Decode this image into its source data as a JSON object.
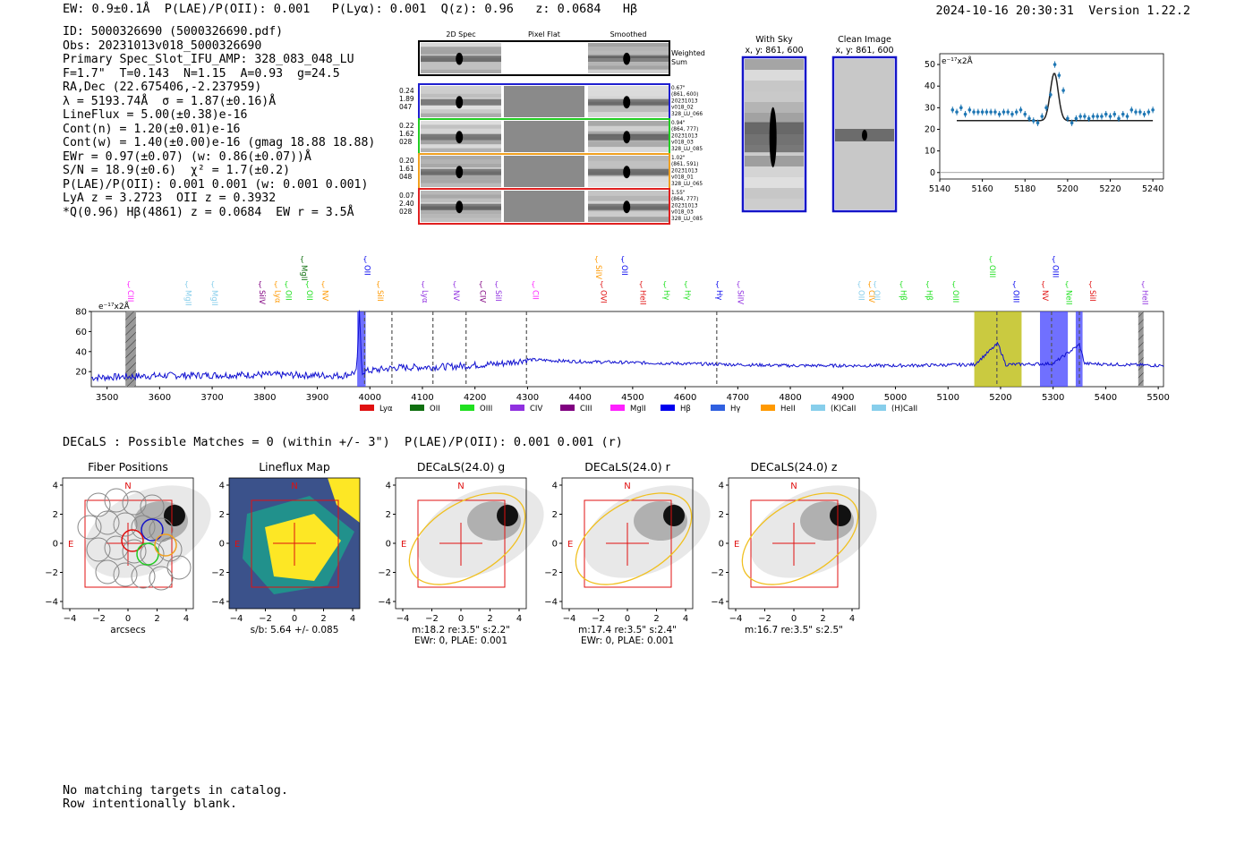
{
  "header": {
    "left": "EW: 0.9±0.1Å  P(LAE)/P(OII): 0.001   P(Lyα): 0.001  Q(z): 0.96   z: 0.0684   Hβ",
    "sup_plae": "0.001",
    "sub_plae": "0.001",
    "sup_qz": "0.96",
    "sub_qz": "0.96",
    "sup_z": "0.0684",
    "sub_z": "0.0684",
    "timestamp": "2024-10-16 20:30:31",
    "version": "Version 1.22.2"
  },
  "info": [
    "ID: 5000326690 (5000326690.pdf)",
    "Obs: 20231013v018_5000326690",
    "Primary Spec_Slot_IFU_AMP: 328_083_048_LU",
    "F=1.7\"  T=0.143  N=1.15  A=0.93  g=24.5",
    "RA,Dec (22.675406,-2.237959)",
    "λ = 5193.74Å  σ = 1.87(±0.16)Å",
    "LineFlux = 5.00(±0.38)e-16",
    "Cont(n) = 1.20(±0.01)e-16",
    "Cont(w) = 1.40(±0.00)e-16 (gmag 18.88 18.88)",
    "EWr = 0.97(±0.07) (w: 0.86(±0.07))Å",
    "S/N = 18.9(±0.6)  χ² = 1.7(±0.2)",
    "P(LAE)/P(OII): 0.001 0.001 (w: 0.001 0.001)",
    "LyA z = 3.2723  OII z = 0.3932",
    "*Q(0.96) Hβ(4861) z = 0.0684  EW r = 3.5Å"
  ],
  "cutouts": {
    "col_headers": [
      "2D Spec",
      "Pixel Flat",
      "Smoothed"
    ],
    "weighted_sum_label": "Weighted Sum",
    "rows": [
      {
        "left": [
          "0.24",
          "1.89",
          "047"
        ],
        "right": [
          "0.67\"",
          "(861, 600)",
          "20231013",
          "v018_02",
          "328_LU_066"
        ],
        "color": "#1f1fd0"
      },
      {
        "left": [
          "0.22",
          "1.62",
          "028"
        ],
        "right": [
          "0.94\"",
          "(864, 777)",
          "20231013",
          "v018_03",
          "328_LU_085"
        ],
        "color": "#22cc22"
      },
      {
        "left": [
          "0.20",
          "1.61",
          "048"
        ],
        "right": [
          "1.02\"",
          "(861, 591)",
          "20231013",
          "v018_01",
          "328_LU_065"
        ],
        "color": "#f0a020"
      },
      {
        "left": [
          "0.07",
          "2.40",
          "028"
        ],
        "right": [
          "1.55\"",
          "(864, 777)",
          "20231013",
          "v018_03",
          "328_LU_085"
        ],
        "color": "#e02020"
      }
    ]
  },
  "sky_panels": [
    {
      "title": "With Sky",
      "subtitle": "x, y: 861, 600"
    },
    {
      "title": "Clean Image",
      "subtitle": "x, y: 861, 600"
    }
  ],
  "zoom_chart": {
    "ylabel_units": "e⁻¹⁷x2Å",
    "xticks": [
      "5140",
      "5160",
      "5180",
      "5200",
      "5220",
      "5240"
    ],
    "yticks": [
      "0",
      "10",
      "20",
      "30",
      "40",
      "50"
    ]
  },
  "spectrum": {
    "ylabel_units": "e⁻¹⁷x2Å",
    "xticks": [
      "3500",
      "3600",
      "3700",
      "3800",
      "3900",
      "4000",
      "4100",
      "4200",
      "4300",
      "4400",
      "4500",
      "4600",
      "4700",
      "4800",
      "4900",
      "5000",
      "5100",
      "5200",
      "5300",
      "5400",
      "5500"
    ],
    "yticks": [
      "20",
      "40",
      "60",
      "80"
    ],
    "legend": [
      {
        "label": "Lyα",
        "color": "#e01010"
      },
      {
        "label": "OII",
        "color": "#107010"
      },
      {
        "label": "OIII",
        "color": "#20e020"
      },
      {
        "label": "CIV",
        "color": "#9030e0"
      },
      {
        "label": "CIII",
        "color": "#800080"
      },
      {
        "label": "MgII",
        "color": "#ff20ff"
      },
      {
        "label": "Hβ",
        "color": "#0000ee"
      },
      {
        "label": "Hγ",
        "color": "#3060e0"
      },
      {
        "label": "HeII",
        "color": "#ff9900"
      },
      {
        "label": "(K)CaII",
        "color": "#87ceeb"
      },
      {
        "label": "(H)CaII",
        "color": "#87ceeb"
      }
    ],
    "line_labels": [
      {
        "label": "CIII",
        "color": "#ff20ff"
      },
      {
        "label": "MgII",
        "color": "#87ceeb"
      },
      {
        "label": "MgII",
        "color": "#87ceeb"
      },
      {
        "label": "SiIV",
        "color": "#800080"
      },
      {
        "label": "Lyα",
        "color": "#ff9900"
      },
      {
        "label": "OII",
        "color": "#20e020"
      },
      {
        "label": "MgII",
        "color": "#107010"
      },
      {
        "label": "OII",
        "color": "#20e020"
      },
      {
        "label": "NV",
        "color": "#ff9900"
      },
      {
        "label": "OII",
        "color": "#0000ee"
      },
      {
        "label": "SiII",
        "color": "#ff9900"
      },
      {
        "label": "Lyα",
        "color": "#9030e0"
      },
      {
        "label": "NV",
        "color": "#9030e0"
      },
      {
        "label": "CIV",
        "color": "#800080"
      },
      {
        "label": "SiII",
        "color": "#9030e0"
      },
      {
        "label": "CII",
        "color": "#ff20ff"
      },
      {
        "label": "SiIV",
        "color": "#ff9900"
      },
      {
        "label": "OVI",
        "color": "#e01010"
      },
      {
        "label": "OII",
        "color": "#0000ee"
      },
      {
        "label": "HeII",
        "color": "#e01010"
      },
      {
        "label": "Hγ",
        "color": "#20e020"
      },
      {
        "label": "Hγ",
        "color": "#20e020"
      },
      {
        "label": "Hγ",
        "color": "#0000ee"
      },
      {
        "label": "SiIV",
        "color": "#9030e0"
      },
      {
        "label": "OII",
        "color": "#87ceeb"
      },
      {
        "label": "CIV",
        "color": "#ff9900"
      },
      {
        "label": "OII",
        "color": "#87ceeb"
      },
      {
        "label": "Hβ",
        "color": "#20e020"
      },
      {
        "label": "Hβ",
        "color": "#20e020"
      },
      {
        "label": "OIII",
        "color": "#20e020"
      },
      {
        "label": "OIII",
        "color": "#20e020"
      },
      {
        "label": "OIII",
        "color": "#0000ee"
      },
      {
        "label": "NV",
        "color": "#e01010"
      },
      {
        "label": "OIII",
        "color": "#0000ee"
      },
      {
        "label": "NeII",
        "color": "#20e020"
      },
      {
        "label": "SiII",
        "color": "#e01010"
      },
      {
        "label": "HeII",
        "color": "#9030e0"
      }
    ]
  },
  "decals_line": "DECaLS : Possible Matches = 0 (within +/- 3\")  P(LAE)/P(OII): 0.001 0.001 (r)",
  "thumbnails": [
    {
      "title": "Fiber Positions",
      "caption1": "arcsecs",
      "caption2": ""
    },
    {
      "title": "Lineflux Map",
      "caption1": "s/b: 5.64 +/- 0.085",
      "caption2": ""
    },
    {
      "title": "DECaLS(24.0) g",
      "caption1": "m:18.2  re:3.5\"  s:2.2\"",
      "caption2": "EWr: 0, PLAE: 0.001"
    },
    {
      "title": "DECaLS(24.0) r",
      "caption1": "m:17.4  re:3.5\"  s:2.4\"",
      "caption2": "EWr: 0, PLAE: 0.001"
    },
    {
      "title": "DECaLS(24.0) z",
      "caption1": "m:16.7  re:3.5\"  s:2.5\"",
      "caption2": ""
    }
  ],
  "thumb_ticks": [
    "−4",
    "−2",
    "0",
    "2",
    "4"
  ],
  "compass": {
    "n": "N",
    "e": "E"
  },
  "footer": [
    "No matching targets in catalog.",
    "Row intentionally blank."
  ],
  "chart_data": [
    {
      "type": "scatter",
      "title": "",
      "xlabel": "",
      "ylabel": "e⁻¹⁷x2Å",
      "xlim": [
        5140,
        5245
      ],
      "ylim": [
        -3,
        55
      ],
      "x": [
        5146,
        5148,
        5150,
        5152,
        5154,
        5156,
        5158,
        5160,
        5162,
        5164,
        5166,
        5168,
        5170,
        5172,
        5174,
        5176,
        5178,
        5180,
        5182,
        5184,
        5186,
        5188,
        5190,
        5192,
        5194,
        5196,
        5198,
        5200,
        5202,
        5204,
        5206,
        5208,
        5210,
        5212,
        5214,
        5216,
        5218,
        5220,
        5222,
        5224,
        5226,
        5228,
        5230,
        5232,
        5234,
        5236,
        5238,
        5240
      ],
      "y": [
        29,
        28,
        30,
        27,
        29,
        28,
        28,
        28,
        28,
        28,
        28,
        27,
        28,
        28,
        27,
        28,
        29,
        27,
        25,
        24,
        23,
        26,
        30,
        36,
        50,
        45,
        38,
        25,
        23,
        25,
        26,
        26,
        25,
        26,
        26,
        26,
        27,
        26,
        27,
        25,
        27,
        26,
        29,
        28,
        28,
        27,
        28,
        29
      ],
      "fit": {
        "continuum": 24,
        "center": 5193.74,
        "sigma": 1.87,
        "amplitude": 22
      }
    },
    {
      "type": "line",
      "title": "",
      "xlabel": "",
      "ylabel": "e⁻¹⁷x2Å",
      "xlim": [
        3470,
        5510
      ],
      "ylim": [
        5,
        80
      ],
      "series_baseline": [
        [
          3470,
          14
        ],
        [
          3600,
          16
        ],
        [
          3800,
          17
        ],
        [
          3950,
          16
        ],
        [
          3975,
          20
        ],
        [
          3980,
          78
        ],
        [
          3985,
          20
        ],
        [
          4050,
          24
        ],
        [
          4150,
          25
        ],
        [
          4250,
          28
        ],
        [
          4300,
          32
        ],
        [
          4400,
          30
        ],
        [
          4600,
          28
        ],
        [
          4800,
          26
        ],
        [
          5000,
          26
        ],
        [
          5150,
          27
        ],
        [
          5195,
          48
        ],
        [
          5210,
          27
        ],
        [
          5300,
          28
        ],
        [
          5350,
          47
        ],
        [
          5360,
          28
        ],
        [
          5510,
          26
        ]
      ],
      "emission_bands": [
        {
          "x0": 3976,
          "x1": 3992,
          "color": "#4040ff"
        },
        {
          "x0": 5150,
          "x1": 5240,
          "color": "#b8b800"
        },
        {
          "x0": 5275,
          "x1": 5328,
          "color": "#4040ff"
        },
        {
          "x0": 5343,
          "x1": 5356,
          "color": "#4040ff"
        }
      ],
      "hatched_bands": [
        {
          "x0": 3535,
          "x1": 3555
        },
        {
          "x0": 5462,
          "x1": 5472
        }
      ],
      "dashed_lines": [
        3990,
        4042,
        4120,
        4183,
        4298,
        4660,
        5193,
        5297,
        5350
      ]
    }
  ]
}
